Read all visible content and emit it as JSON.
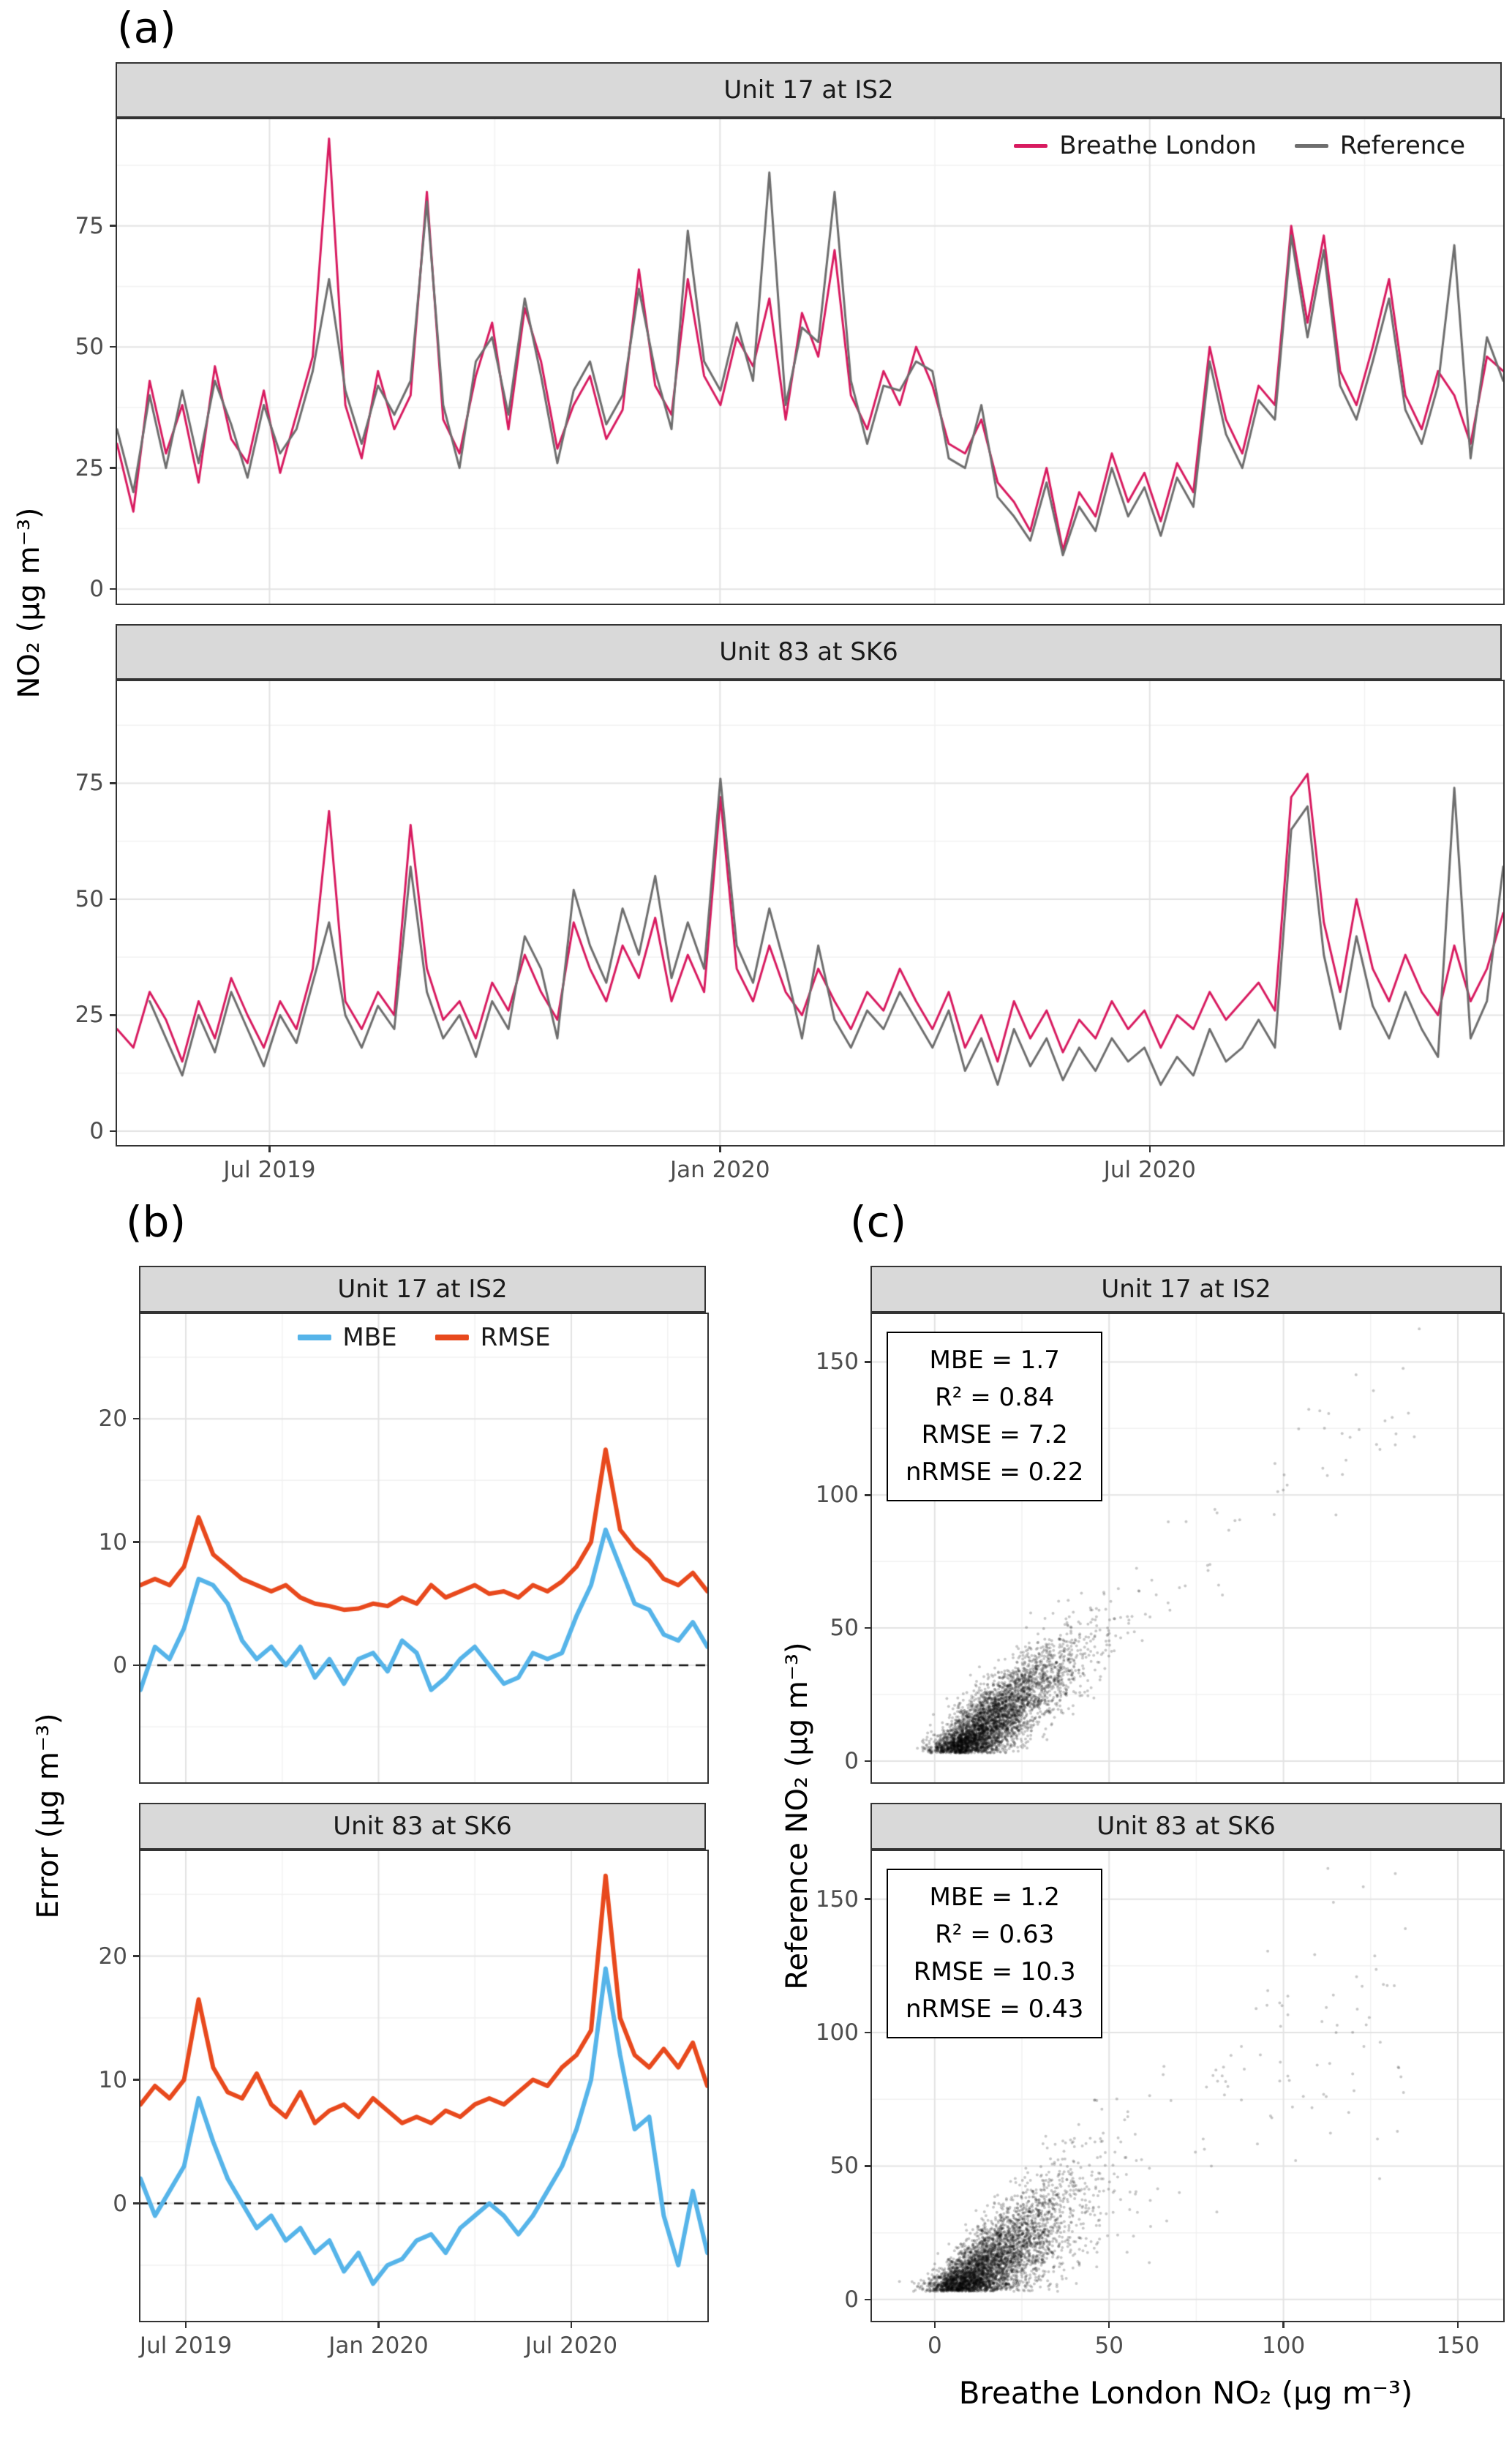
{
  "figure": {
    "panels": {
      "a": {
        "letter": "(a)",
        "ylabel": "NO₂ (µg m⁻³)"
      },
      "b": {
        "letter": "(b)",
        "ylabel": "Error (µg m⁻³)"
      },
      "c": {
        "letter": "(c)",
        "ylabel": "Reference NO₂ (µg m⁻³)",
        "xlabel": "Breathe London NO₂ (µg m⁻³)"
      }
    }
  },
  "colors": {
    "breathe_london": "#D81B60",
    "reference": "#6E6E6E",
    "mbe": "#56B4E9",
    "rmse": "#E8491D",
    "strip_bg": "#D9D9D9",
    "grid_major": "#E3E3E3",
    "grid_minor": "#F1F1F1",
    "axis_text": "#4D4D4D",
    "scatter_dot": "rgba(0,0,0,0.22)"
  },
  "chart_data": [
    {
      "id": "a1",
      "type": "line",
      "title": "Unit 17 at IS2",
      "ylim": [
        -3,
        97
      ],
      "yticks": [
        0,
        25,
        50,
        75
      ],
      "y_minor": [
        12.5,
        37.5,
        62.5,
        87.5
      ],
      "x_ticks": [
        {
          "f": 0.11,
          "label": "Jul 2019"
        },
        {
          "f": 0.435,
          "label": "Jan 2020"
        },
        {
          "f": 0.745,
          "label": "Jul 2020"
        }
      ],
      "x_minor": [
        0.2725,
        0.59,
        0.9
      ],
      "show_x_labels": false,
      "legend": true,
      "line_width": 3,
      "series": [
        {
          "name": "Breathe London",
          "color": "#D81B60",
          "values": [
            30,
            16,
            43,
            28,
            38,
            22,
            46,
            31,
            26,
            41,
            24,
            36,
            48,
            93,
            38,
            27,
            45,
            33,
            40,
            82,
            35,
            28,
            44,
            55,
            33,
            58,
            47,
            29,
            38,
            44,
            31,
            37,
            66,
            42,
            36,
            64,
            44,
            38,
            52,
            46,
            60,
            35,
            57,
            48,
            70,
            40,
            33,
            45,
            38,
            50,
            42,
            30,
            28,
            35,
            22,
            18,
            12,
            25,
            8,
            20,
            15,
            28,
            18,
            24,
            14,
            26,
            20,
            50,
            35,
            28,
            42,
            38,
            75,
            55,
            73,
            45,
            38,
            50,
            64,
            40,
            33,
            45,
            40,
            30,
            48,
            45
          ]
        },
        {
          "name": "Reference",
          "color": "#6E6E6E",
          "values": [
            33,
            20,
            40,
            25,
            41,
            26,
            43,
            34,
            23,
            38,
            28,
            33,
            45,
            64,
            41,
            30,
            42,
            36,
            43,
            80,
            38,
            25,
            47,
            52,
            36,
            60,
            44,
            26,
            41,
            47,
            34,
            40,
            62,
            45,
            33,
            74,
            47,
            41,
            55,
            43,
            86,
            38,
            54,
            51,
            82,
            43,
            30,
            42,
            41,
            47,
            45,
            27,
            25,
            38,
            19,
            15,
            10,
            22,
            7,
            17,
            12,
            25,
            15,
            21,
            11,
            23,
            17,
            47,
            32,
            25,
            39,
            35,
            73,
            52,
            70,
            42,
            35,
            47,
            60,
            37,
            30,
            42,
            71,
            27,
            52,
            43
          ]
        }
      ]
    },
    {
      "id": "a2",
      "type": "line",
      "title": "Unit 83 at SK6",
      "ylim": [
        -3,
        97
      ],
      "yticks": [
        0,
        25,
        50,
        75
      ],
      "y_minor": [
        12.5,
        37.5,
        62.5,
        87.5
      ],
      "x_ticks": [
        {
          "f": 0.11,
          "label": "Jul 2019"
        },
        {
          "f": 0.435,
          "label": "Jan 2020"
        },
        {
          "f": 0.745,
          "label": "Jul 2020"
        }
      ],
      "x_minor": [
        0.2725,
        0.59,
        0.9
      ],
      "show_x_labels": true,
      "legend": false,
      "line_width": 3,
      "series": [
        {
          "name": "Breathe London",
          "color": "#D81B60",
          "values": [
            22,
            18,
            30,
            24,
            15,
            28,
            20,
            33,
            25,
            18,
            28,
            22,
            35,
            69,
            28,
            22,
            30,
            25,
            66,
            35,
            24,
            28,
            20,
            32,
            26,
            38,
            30,
            24,
            45,
            35,
            28,
            40,
            33,
            46,
            28,
            38,
            30,
            72,
            35,
            28,
            40,
            30,
            25,
            35,
            28,
            22,
            30,
            26,
            35,
            28,
            22,
            30,
            18,
            25,
            15,
            28,
            20,
            26,
            17,
            24,
            20,
            28,
            22,
            26,
            18,
            25,
            22,
            30,
            24,
            28,
            32,
            26,
            72,
            77,
            45,
            30,
            50,
            35,
            28,
            38,
            30,
            25,
            40,
            28,
            35,
            47
          ]
        },
        {
          "name": "Reference",
          "color": "#6E6E6E",
          "values": [
            null,
            null,
            28,
            20,
            12,
            25,
            17,
            30,
            22,
            14,
            25,
            19,
            32,
            45,
            25,
            18,
            27,
            22,
            57,
            30,
            20,
            25,
            16,
            28,
            22,
            42,
            35,
            20,
            52,
            40,
            32,
            48,
            38,
            55,
            33,
            45,
            35,
            76,
            40,
            32,
            48,
            35,
            20,
            40,
            24,
            18,
            26,
            22,
            30,
            24,
            18,
            26,
            13,
            20,
            10,
            22,
            14,
            20,
            11,
            18,
            13,
            20,
            15,
            18,
            10,
            16,
            12,
            22,
            15,
            18,
            24,
            18,
            65,
            70,
            38,
            22,
            42,
            27,
            20,
            30,
            22,
            16,
            74,
            20,
            28,
            57
          ]
        }
      ]
    },
    {
      "id": "b1",
      "type": "line",
      "title": "Unit 17 at IS2",
      "ylim": [
        -9.5,
        28.5
      ],
      "yticks": [
        0,
        10,
        20
      ],
      "y_minor": [
        -5,
        5,
        15,
        25
      ],
      "x_ticks": [
        {
          "f": 0.08,
          "label": "Jul 2019"
        },
        {
          "f": 0.42,
          "label": "Jan 2020"
        },
        {
          "f": 0.76,
          "label": "Jul 2020"
        }
      ],
      "x_minor": [
        0.25,
        0.59,
        0.93
      ],
      "zero_dash": true,
      "show_x_labels": false,
      "legend": true,
      "line_width": 6,
      "series": [
        {
          "name": "MBE",
          "color": "#56B4E9",
          "values": [
            -2,
            1.5,
            0.5,
            3,
            7,
            6.5,
            5,
            2,
            0.5,
            1.5,
            0,
            1.5,
            -1,
            0.5,
            -1.5,
            0.5,
            1,
            -0.5,
            2,
            1,
            -2,
            -1,
            0.5,
            1.5,
            0,
            -1.5,
            -1,
            1,
            0.5,
            1,
            4,
            6.5,
            11,
            8,
            5,
            4.5,
            2.5,
            2,
            3.5,
            1.5
          ]
        },
        {
          "name": "RMSE",
          "color": "#E8491D",
          "values": [
            6.5,
            7,
            6.5,
            8,
            12,
            9,
            8,
            7,
            6.5,
            6,
            6.5,
            5.5,
            5,
            4.8,
            4.5,
            4.6,
            5,
            4.8,
            5.5,
            5,
            6.5,
            5.5,
            6,
            6.5,
            5.8,
            6,
            5.5,
            6.5,
            6,
            6.8,
            8,
            10,
            17.5,
            11,
            9.5,
            8.5,
            7,
            6.5,
            7.5,
            6
          ]
        }
      ]
    },
    {
      "id": "b2",
      "type": "line",
      "title": "Unit 83 at SK6",
      "ylim": [
        -9.5,
        28.5
      ],
      "yticks": [
        0,
        10,
        20
      ],
      "y_minor": [
        -5,
        5,
        15,
        25
      ],
      "x_ticks": [
        {
          "f": 0.08,
          "label": "Jul 2019"
        },
        {
          "f": 0.42,
          "label": "Jan 2020"
        },
        {
          "f": 0.76,
          "label": "Jul 2020"
        }
      ],
      "x_minor": [
        0.25,
        0.59,
        0.93
      ],
      "zero_dash": true,
      "show_x_labels": true,
      "legend": false,
      "line_width": 6,
      "series": [
        {
          "name": "MBE",
          "color": "#56B4E9",
          "values": [
            2,
            -1,
            1,
            3,
            8.5,
            5,
            2,
            0,
            -2,
            -1,
            -3,
            -2,
            -4,
            -3,
            -5.5,
            -4,
            -6.5,
            -5,
            -4.5,
            -3,
            -2.5,
            -4,
            -2,
            -1,
            0,
            -1,
            -2.5,
            -1,
            1,
            3,
            6,
            10,
            19,
            12,
            6,
            7,
            -1,
            -5,
            1,
            -4
          ]
        },
        {
          "name": "RMSE",
          "color": "#E8491D",
          "values": [
            8,
            9.5,
            8.5,
            10,
            16.5,
            11,
            9,
            8.5,
            10.5,
            8,
            7,
            9,
            6.5,
            7.5,
            8,
            7,
            8.5,
            7.5,
            6.5,
            7,
            6.5,
            7.5,
            7,
            8,
            8.5,
            8,
            9,
            10,
            9.5,
            11,
            12,
            14,
            26.5,
            15,
            12,
            11,
            12.5,
            11,
            13,
            9.5
          ]
        }
      ]
    },
    {
      "id": "c1",
      "type": "scatter",
      "title": "Unit 17 at IS2",
      "xlim": [
        -18,
        163
      ],
      "ylim": [
        -8,
        168
      ],
      "xticks": [
        0,
        50,
        100,
        150
      ],
      "yticks": [
        0,
        50,
        100,
        150
      ],
      "x_minor_vals": [
        25,
        75,
        125
      ],
      "y_minor": [
        25,
        75,
        125
      ],
      "show_x_labels": false,
      "stats": [
        "MBE = 1.7",
        "R² = 0.84",
        "RMSE = 7.2",
        "nRMSE = 0.22"
      ],
      "cloud": {
        "seed": 17,
        "n": 4200,
        "x_offset": 5,
        "x_spread": 16,
        "x_jitter": 4,
        "tail_frac": 0.012,
        "tail_min": 55,
        "tail_max": 142,
        "slope": 1.0,
        "slope_spread": 0.05,
        "bias": 1.7,
        "noise": 6.2,
        "noise_growth": 0.009,
        "y_floor": 3
      }
    },
    {
      "id": "c2",
      "type": "scatter",
      "title": "Unit 83 at SK6",
      "xlim": [
        -18,
        163
      ],
      "ylim": [
        -8,
        168
      ],
      "xticks": [
        0,
        50,
        100,
        150
      ],
      "yticks": [
        0,
        50,
        100,
        150
      ],
      "x_minor_vals": [
        25,
        75,
        125
      ],
      "y_minor": [
        25,
        75,
        125
      ],
      "show_x_labels": true,
      "stats": [
        "MBE = 1.2",
        "R² = 0.63",
        "RMSE = 10.3",
        "nRMSE = 0.43"
      ],
      "cloud": {
        "seed": 83,
        "n": 4200,
        "x_offset": 4,
        "x_spread": 17,
        "x_jitter": 4,
        "tail_frac": 0.02,
        "tail_min": 55,
        "tail_max": 135,
        "slope": 0.9,
        "slope_spread": 0.22,
        "bias": 1.2,
        "noise": 6,
        "noise_growth": 0.012,
        "y_floor": 3
      }
    }
  ]
}
